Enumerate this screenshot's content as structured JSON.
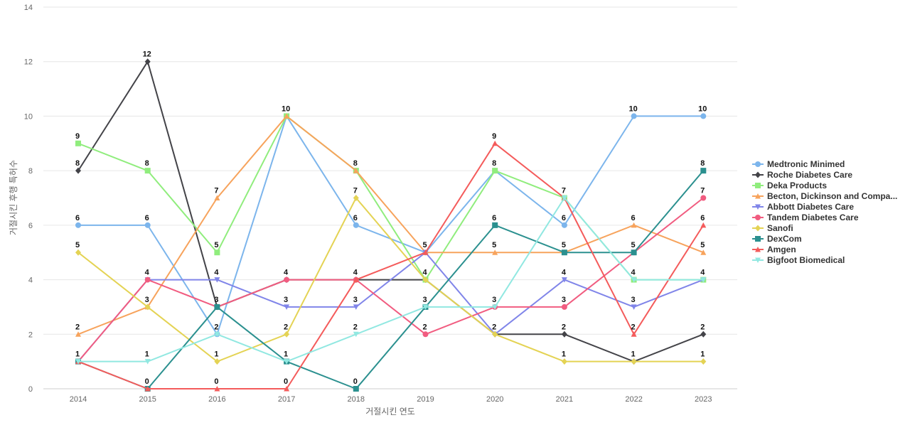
{
  "chart_data": {
    "type": "line",
    "xlabel": "거절시킨 연도",
    "ylabel": "거절시킨 후행 특허수",
    "x": [
      "2014",
      "2015",
      "2016",
      "2017",
      "2018",
      "2019",
      "2020",
      "2021",
      "2022",
      "2023"
    ],
    "ylim": [
      0,
      14
    ],
    "yticks": [
      0,
      2,
      4,
      6,
      8,
      10,
      12,
      14
    ],
    "grid": true,
    "legend_position": "right",
    "series": [
      {
        "name": "Medtronic Minimed",
        "color": "#7cb5ec",
        "marker": "circle",
        "values": [
          6,
          6,
          2,
          10,
          6,
          5,
          8,
          6,
          10,
          10
        ]
      },
      {
        "name": "Roche Diabetes Care",
        "color": "#434348",
        "marker": "diamond",
        "values": [
          8,
          12,
          3,
          4,
          4,
          4,
          2,
          2,
          1,
          2
        ]
      },
      {
        "name": "Deka Products",
        "color": "#90ed7d",
        "marker": "square",
        "values": [
          9,
          8,
          5,
          10,
          8,
          4,
          8,
          7,
          4,
          4
        ]
      },
      {
        "name": "Becton, Dickinson and Compa...",
        "color": "#f7a35c",
        "marker": "triangle",
        "values": [
          2,
          3,
          7,
          10,
          8,
          5,
          5,
          5,
          6,
          5
        ]
      },
      {
        "name": "Abbott Diabetes Care",
        "color": "#8085e9",
        "marker": "triangle-down",
        "values": [
          1,
          4,
          4,
          3,
          3,
          5,
          2,
          4,
          3,
          4
        ]
      },
      {
        "name": "Tandem Diabetes Care",
        "color": "#f15c80",
        "marker": "circle",
        "values": [
          1,
          4,
          3,
          4,
          4,
          2,
          3,
          3,
          5,
          7
        ]
      },
      {
        "name": "Sanofi",
        "color": "#e4d354",
        "marker": "diamond",
        "values": [
          5,
          3,
          1,
          2,
          7,
          4,
          2,
          1,
          1,
          1
        ]
      },
      {
        "name": "DexCom",
        "color": "#2b908f",
        "marker": "square",
        "values": [
          1,
          0,
          3,
          1,
          0,
          3,
          6,
          5,
          5,
          8
        ]
      },
      {
        "name": "Amgen",
        "color": "#f45b5b",
        "marker": "triangle",
        "values": [
          1,
          0,
          0,
          0,
          4,
          5,
          9,
          7,
          2,
          6
        ]
      },
      {
        "name": "Bigfoot Biomedical",
        "color": "#91e8e1",
        "marker": "triangle-down",
        "values": [
          1,
          1,
          2,
          1,
          2,
          3,
          3,
          7,
          4,
          4
        ]
      }
    ],
    "data_labels": [
      {
        "x": "2014",
        "value": 9
      },
      {
        "x": "2014",
        "value": 8
      },
      {
        "x": "2014",
        "value": 6
      },
      {
        "x": "2014",
        "value": 5
      },
      {
        "x": "2014",
        "value": 2
      },
      {
        "x": "2014",
        "value": 1
      },
      {
        "x": "2015",
        "value": 12
      },
      {
        "x": "2015",
        "value": 8
      },
      {
        "x": "2015",
        "value": 6
      },
      {
        "x": "2015",
        "value": 4
      },
      {
        "x": "2015",
        "value": 3
      },
      {
        "x": "2015",
        "value": 1
      },
      {
        "x": "2015",
        "value": 0
      },
      {
        "x": "2016",
        "value": 7
      },
      {
        "x": "2016",
        "value": 5
      },
      {
        "x": "2016",
        "value": 4
      },
      {
        "x": "2016",
        "value": 3
      },
      {
        "x": "2016",
        "value": 2
      },
      {
        "x": "2016",
        "value": 1
      },
      {
        "x": "2016",
        "value": 0
      },
      {
        "x": "2017",
        "value": 10
      },
      {
        "x": "2017",
        "value": 4
      },
      {
        "x": "2017",
        "value": 3
      },
      {
        "x": "2017",
        "value": 2
      },
      {
        "x": "2017",
        "value": 1
      },
      {
        "x": "2017",
        "value": 0
      },
      {
        "x": "2018",
        "value": 8
      },
      {
        "x": "2018",
        "value": 7
      },
      {
        "x": "2018",
        "value": 6
      },
      {
        "x": "2018",
        "value": 4
      },
      {
        "x": "2018",
        "value": 3
      },
      {
        "x": "2018",
        "value": 2
      },
      {
        "x": "2018",
        "value": 0
      },
      {
        "x": "2019",
        "value": 5
      },
      {
        "x": "2019",
        "value": 4
      },
      {
        "x": "2019",
        "value": 3
      },
      {
        "x": "2019",
        "value": 2
      },
      {
        "x": "2020",
        "value": 9
      },
      {
        "x": "2020",
        "value": 8
      },
      {
        "x": "2020",
        "value": 6
      },
      {
        "x": "2020",
        "value": 5
      },
      {
        "x": "2020",
        "value": 3
      },
      {
        "x": "2020",
        "value": 2
      },
      {
        "x": "2021",
        "value": 7
      },
      {
        "x": "2021",
        "value": 6
      },
      {
        "x": "2021",
        "value": 5
      },
      {
        "x": "2021",
        "value": 4
      },
      {
        "x": "2021",
        "value": 3
      },
      {
        "x": "2021",
        "value": 2
      },
      {
        "x": "2021",
        "value": 1
      },
      {
        "x": "2022",
        "value": 10
      },
      {
        "x": "2022",
        "value": 6
      },
      {
        "x": "2022",
        "value": 5
      },
      {
        "x": "2022",
        "value": 4
      },
      {
        "x": "2022",
        "value": 3
      },
      {
        "x": "2022",
        "value": 2
      },
      {
        "x": "2022",
        "value": 1
      },
      {
        "x": "2023",
        "value": 10
      },
      {
        "x": "2023",
        "value": 8
      },
      {
        "x": "2023",
        "value": 7
      },
      {
        "x": "2023",
        "value": 6
      },
      {
        "x": "2023",
        "value": 5
      },
      {
        "x": "2023",
        "value": 4
      },
      {
        "x": "2023",
        "value": 2
      },
      {
        "x": "2023",
        "value": 1
      }
    ]
  }
}
